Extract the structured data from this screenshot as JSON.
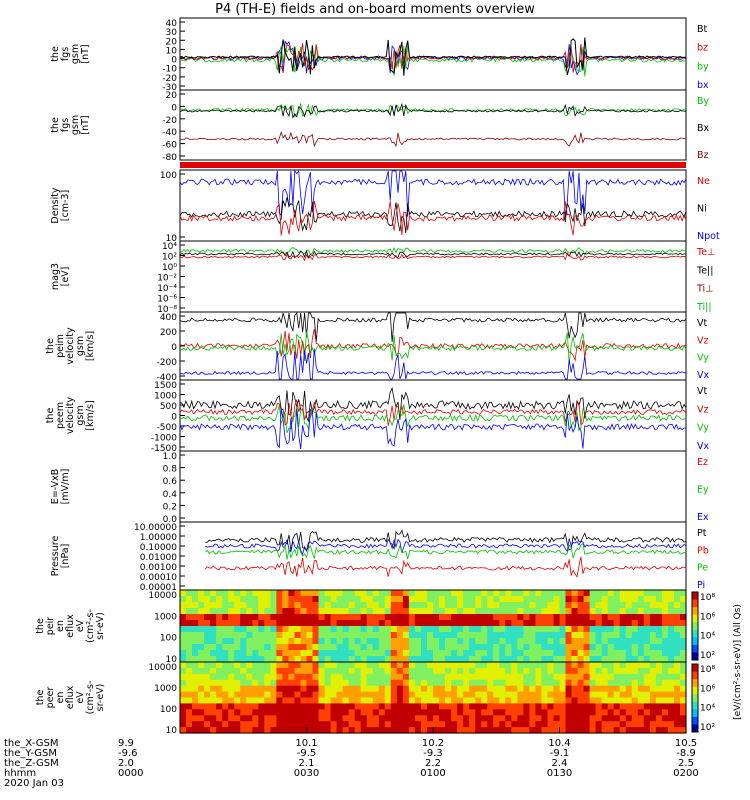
{
  "title": "P4 (TH-E) fields and on-board moments overview",
  "colors": {
    "black": "#000000",
    "red": "#e00000",
    "green": "#00c000",
    "blue": "#0000ff",
    "darkred": "#8b0000"
  },
  "chart_data": [
    {
      "type": "line",
      "panel": 1,
      "ylabel": [
        "the",
        "fgs",
        "gsm",
        "[nT]"
      ],
      "yticks": [
        "40",
        "30",
        "20",
        "10",
        "0",
        "-10",
        "-20",
        "-30"
      ],
      "series": [
        {
          "name": "Bt",
          "color": "black"
        },
        {
          "name": "bz",
          "color": "red"
        },
        {
          "name": "by",
          "color": "green"
        },
        {
          "name": "bx",
          "color": "blue"
        }
      ]
    },
    {
      "type": "line",
      "panel": 2,
      "ylabel": [
        "the",
        "fgs",
        "gsm",
        "[nT]"
      ],
      "yticks": [
        "20",
        "0",
        "-20",
        "-40",
        "-60",
        "-80"
      ],
      "series": [
        {
          "name": "By",
          "color": "green"
        },
        {
          "name": "Bx",
          "color": "black"
        },
        {
          "name": "Bz",
          "color": "darkred"
        }
      ]
    },
    {
      "type": "line",
      "panel": 3,
      "ylabel": [
        "Density",
        "[cm-3]"
      ],
      "yticks": [
        "100",
        "10"
      ],
      "scale": "log",
      "series": [
        {
          "name": "Ne",
          "color": "red"
        },
        {
          "name": "Ni",
          "color": "black"
        },
        {
          "name": "Npot",
          "color": "blue"
        }
      ]
    },
    {
      "type": "line",
      "panel": 4,
      "ylabel": [
        "mag3",
        "[eV]"
      ],
      "yticks": [
        "10⁴",
        "10²",
        "10⁰",
        "10⁻²",
        "10⁻⁴",
        "10⁻⁶",
        "10⁻⁸"
      ],
      "scale": "log",
      "series": [
        {
          "name": "Te⊥",
          "color": "red"
        },
        {
          "name": "Te||",
          "color": "black"
        },
        {
          "name": "Ti⊥",
          "color": "darkred"
        },
        {
          "name": "Ti||",
          "color": "green"
        }
      ]
    },
    {
      "type": "line",
      "panel": 5,
      "ylabel": [
        "the",
        "peim",
        "velocity",
        "gsm",
        "[km/s]"
      ],
      "yticks": [
        "400",
        "200",
        "0",
        "-200",
        "-400"
      ],
      "series": [
        {
          "name": "Vt",
          "color": "black"
        },
        {
          "name": "Vz",
          "color": "red"
        },
        {
          "name": "Vy",
          "color": "green"
        },
        {
          "name": "Vx",
          "color": "blue"
        }
      ]
    },
    {
      "type": "line",
      "panel": 6,
      "ylabel": [
        "the",
        "peem",
        "velocity",
        "gsm",
        "[km/s]"
      ],
      "yticks": [
        "1500",
        "1000",
        "500",
        "0",
        "-500",
        "-1000",
        "-1500"
      ],
      "series": [
        {
          "name": "Vt",
          "color": "black"
        },
        {
          "name": "Vz",
          "color": "red"
        },
        {
          "name": "Vy",
          "color": "green"
        },
        {
          "name": "Vx",
          "color": "blue"
        }
      ]
    },
    {
      "type": "line",
      "panel": 7,
      "ylabel": [
        "E=-VxB",
        "[mV/m]"
      ],
      "yticks": [
        "1.0",
        "0.8",
        "0.6",
        "0.4",
        "0.2",
        "0.0"
      ],
      "series": [
        {
          "name": "Ez",
          "color": "red"
        },
        {
          "name": "Ey",
          "color": "green"
        },
        {
          "name": "Ex",
          "color": "blue"
        }
      ]
    },
    {
      "type": "line",
      "panel": 8,
      "ylabel": [
        "Pressure",
        "[nPa]"
      ],
      "yticks": [
        "10.00000",
        "1.00000",
        "0.10000",
        "0.01000",
        "0.00100",
        "0.00010",
        "0.00001"
      ],
      "scale": "log",
      "series": [
        {
          "name": "Pt",
          "color": "black"
        },
        {
          "name": "Pb",
          "color": "red"
        },
        {
          "name": "Pe",
          "color": "green"
        },
        {
          "name": "Pi",
          "color": "blue"
        }
      ]
    },
    {
      "type": "heatmap",
      "panel": 9,
      "ylabel": [
        "the",
        "peir",
        "en",
        "eflux",
        "eV",
        "(cm²-s-",
        "sr-eV)"
      ],
      "yticks": [
        "10000",
        "1000",
        "100",
        "10"
      ]
    },
    {
      "type": "heatmap",
      "panel": 10,
      "ylabel": [
        "the",
        "peer",
        "en",
        "eflux",
        "eV",
        "(cm²-s-",
        "sr-eV)"
      ],
      "yticks": [
        "10000",
        "1000",
        "100",
        "10"
      ]
    }
  ],
  "colorbar": {
    "ticks_upper": [
      "10⁸",
      "10⁶",
      "10⁴",
      "10²"
    ],
    "ticks_lower": [
      "10⁸",
      "10⁶",
      "10⁴",
      "10²"
    ],
    "label": "[eV/(cm²-s-sr-eV)] (All Qs)"
  },
  "xaxis": {
    "rows": [
      {
        "label": "the_X-GSM",
        "values": [
          "9.9",
          "10.1",
          "10.2",
          "10.4",
          "10.5"
        ]
      },
      {
        "label": "the_Y-GSM",
        "values": [
          "-9.6",
          "-9.5",
          "-9.3",
          "-9.1",
          "-8.9"
        ]
      },
      {
        "label": "the_Z-GSM",
        "values": [
          "2.0",
          "2.1",
          "2.2",
          "2.4",
          "2.5"
        ]
      },
      {
        "label": "hhmm",
        "values": [
          "0000",
          "0030",
          "0100",
          "0130",
          "0200"
        ]
      }
    ],
    "date": "2020 Jan 03"
  }
}
